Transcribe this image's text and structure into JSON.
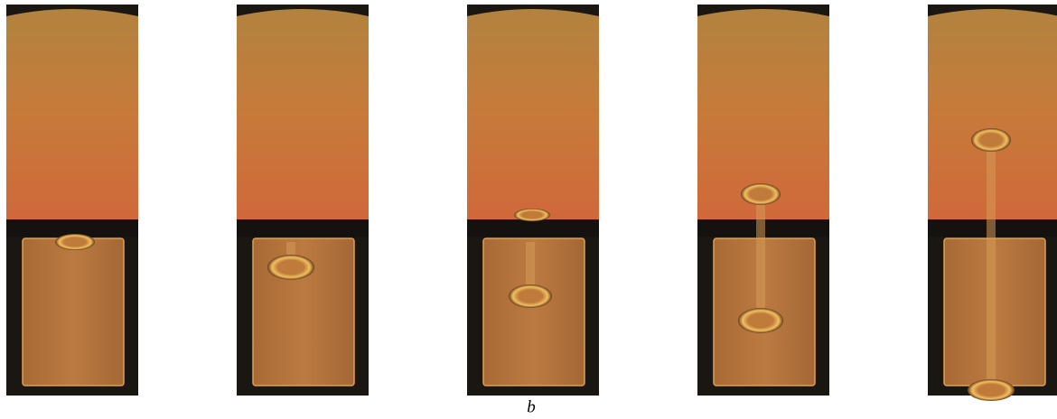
{
  "caption": "b"
}
